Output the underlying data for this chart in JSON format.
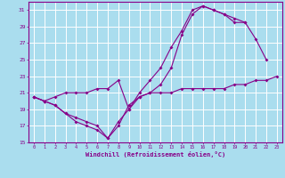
{
  "background_color": "#aaddee",
  "grid_color": "#ffffff",
  "line_color": "#880088",
  "xlabel": "Windchill (Refroidissement éolien,°C)",
  "xlim": [
    -0.5,
    23.5
  ],
  "ylim": [
    15,
    32
  ],
  "yticks": [
    15,
    17,
    19,
    21,
    23,
    25,
    27,
    29,
    31
  ],
  "xticks": [
    0,
    1,
    2,
    3,
    4,
    5,
    6,
    7,
    8,
    9,
    10,
    11,
    12,
    13,
    14,
    15,
    16,
    17,
    18,
    19,
    20,
    21,
    22,
    23
  ],
  "line1_x": [
    0,
    1,
    2,
    3,
    4,
    5,
    6,
    7,
    8,
    9,
    10,
    11,
    12,
    13,
    14,
    15,
    16,
    17,
    18,
    19,
    20,
    21,
    22,
    23
  ],
  "line1_y": [
    20.5,
    20.0,
    19.5,
    18.5,
    17.5,
    17.0,
    16.5,
    15.5,
    17.0,
    19.5,
    20.5,
    21.0,
    21.0,
    21.0,
    21.5,
    21.5,
    21.5,
    21.5,
    21.5,
    22.0,
    22.0,
    22.5,
    22.5,
    23.0
  ],
  "line2_x": [
    0,
    1,
    2,
    3,
    4,
    5,
    6,
    7,
    8,
    9,
    10,
    11,
    12,
    13,
    14,
    15,
    16,
    17,
    18,
    19,
    20,
    21,
    22
  ],
  "line2_y": [
    20.5,
    20.0,
    20.5,
    21.0,
    21.0,
    21.0,
    21.5,
    21.5,
    22.5,
    19.0,
    21.0,
    22.5,
    24.0,
    26.5,
    28.5,
    31.0,
    31.5,
    31.0,
    30.5,
    29.5,
    29.5,
    27.5,
    25.0
  ],
  "line3_x": [
    0,
    1,
    2,
    3,
    4,
    5,
    6,
    7,
    8,
    9,
    10,
    11,
    12,
    13,
    14,
    15,
    16,
    17,
    18,
    19,
    20
  ],
  "line3_y": [
    20.5,
    20.0,
    19.5,
    18.5,
    18.0,
    17.5,
    17.0,
    15.5,
    17.5,
    19.0,
    20.5,
    21.0,
    22.0,
    24.0,
    28.0,
    30.5,
    31.5,
    31.0,
    30.5,
    30.0,
    29.5
  ]
}
